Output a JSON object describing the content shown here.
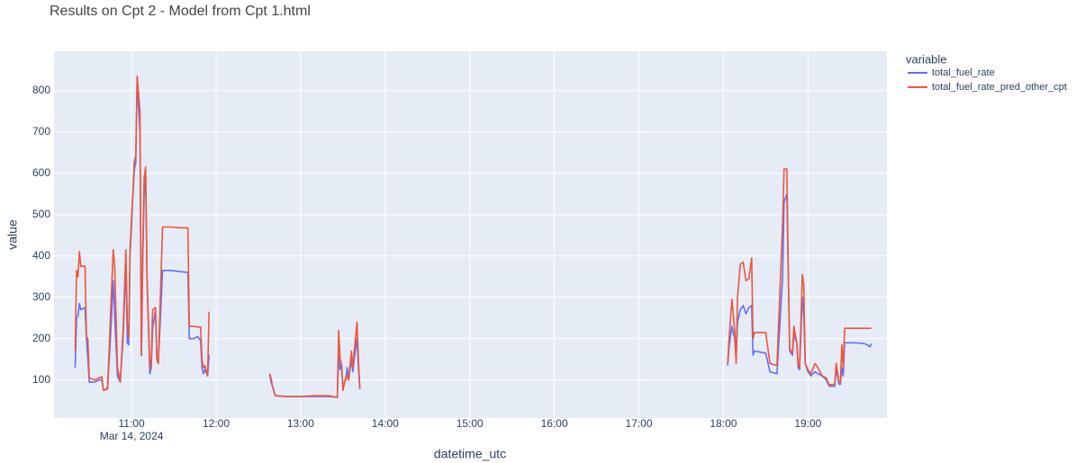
{
  "chart_data": {
    "type": "line",
    "title": "Results on Cpt 2 - Model from Cpt 1.html",
    "x_label": "datetime_utc",
    "y_label": "value",
    "legend_title": "variable",
    "legend_position": "right",
    "grid": true,
    "xlim": [
      "2024-03-14 10:05",
      "2024-03-14 19:56"
    ],
    "xticks": [
      {
        "value": "2024-03-14 11:00",
        "label": "11:00"
      },
      {
        "value": "2024-03-14 12:00",
        "label": "12:00"
      },
      {
        "value": "2024-03-14 13:00",
        "label": "13:00"
      },
      {
        "value": "2024-03-14 14:00",
        "label": "14:00"
      },
      {
        "value": "2024-03-14 15:00",
        "label": "15:00"
      },
      {
        "value": "2024-03-14 16:00",
        "label": "16:00"
      },
      {
        "value": "2024-03-14 17:00",
        "label": "17:00"
      },
      {
        "value": "2024-03-14 18:00",
        "label": "18:00"
      },
      {
        "value": "2024-03-14 19:00",
        "label": "19:00"
      }
    ],
    "xtick_date_label": "Mar 14, 2024",
    "ylim": [
      8,
      895
    ],
    "yticks": [
      100,
      200,
      300,
      400,
      500,
      600,
      700,
      800
    ],
    "x": [
      "2024-03-14 10:20",
      "2024-03-14 10:21",
      "2024-03-14 10:22",
      "2024-03-14 10:23",
      "2024-03-14 10:24",
      "2024-03-14 10:27",
      "2024-03-14 10:28",
      "2024-03-14 10:29",
      "2024-03-14 10:30",
      "2024-03-14 10:34",
      "2024-03-14 10:37",
      "2024-03-14 10:39",
      "2024-03-14 10:40",
      "2024-03-14 10:43",
      "2024-03-14 10:45",
      "2024-03-14 10:47",
      "2024-03-14 10:48",
      "2024-03-14 10:50",
      "2024-03-14 10:52",
      "2024-03-14 10:54",
      "2024-03-14 10:56",
      "2024-03-14 10:57",
      "2024-03-14 10:58",
      "2024-03-14 10:59",
      "2024-03-14 11:01",
      "2024-03-14 11:02",
      "2024-03-14 11:03",
      "2024-03-14 11:04",
      "2024-03-14 11:06",
      "2024-03-14 11:07",
      "2024-03-14 11:08",
      "2024-03-14 11:09",
      "2024-03-14 11:10",
      "2024-03-14 11:11",
      "2024-03-14 11:13",
      "2024-03-14 11:14",
      "2024-03-14 11:15",
      "2024-03-14 11:17",
      "2024-03-14 11:18",
      "2024-03-14 11:19",
      "2024-03-14 11:22",
      "2024-03-14 11:28",
      "2024-03-14 11:35",
      "2024-03-14 11:40",
      "2024-03-14 11:41",
      "2024-03-14 11:44",
      "2024-03-14 11:47",
      "2024-03-14 11:49",
      "2024-03-14 11:50",
      "2024-03-14 11:51",
      "2024-03-14 11:52",
      "2024-03-14 11:54",
      "2024-03-14 11:55",
      "2024-03-14 12:00",
      "2024-03-14 12:38",
      "2024-03-14 12:39",
      "2024-03-14 12:40",
      "2024-03-14 12:42",
      "2024-03-14 12:50",
      "2024-03-14 13:00",
      "2024-03-14 13:10",
      "2024-03-14 13:20",
      "2024-03-14 13:26",
      "2024-03-14 13:27",
      "2024-03-14 13:28",
      "2024-03-14 13:29",
      "2024-03-14 13:30",
      "2024-03-14 13:32",
      "2024-03-14 13:33",
      "2024-03-14 13:34",
      "2024-03-14 13:36",
      "2024-03-14 13:37",
      "2024-03-14 13:38",
      "2024-03-14 13:40",
      "2024-03-14 13:41",
      "2024-03-14 13:42",
      "2024-03-14 15:00",
      "2024-03-14 18:03",
      "2024-03-14 18:04",
      "2024-03-14 18:06",
      "2024-03-14 18:08",
      "2024-03-14 18:09",
      "2024-03-14 18:10",
      "2024-03-14 18:12",
      "2024-03-14 18:14",
      "2024-03-14 18:16",
      "2024-03-14 18:18",
      "2024-03-14 18:20",
      "2024-03-14 18:21",
      "2024-03-14 18:22",
      "2024-03-14 18:30",
      "2024-03-14 18:33",
      "2024-03-14 18:38",
      "2024-03-14 18:42",
      "2024-03-14 18:43",
      "2024-03-14 18:45",
      "2024-03-14 18:46",
      "2024-03-14 18:47",
      "2024-03-14 18:49",
      "2024-03-14 18:50",
      "2024-03-14 18:52",
      "2024-03-14 18:53",
      "2024-03-14 18:54",
      "2024-03-14 18:56",
      "2024-03-14 18:57",
      "2024-03-14 18:58",
      "2024-03-14 19:00",
      "2024-03-14 19:02",
      "2024-03-14 19:05",
      "2024-03-14 19:07",
      "2024-03-14 19:10",
      "2024-03-14 19:13",
      "2024-03-14 19:15",
      "2024-03-14 19:19",
      "2024-03-14 19:20",
      "2024-03-14 19:22",
      "2024-03-14 19:23",
      "2024-03-14 19:24",
      "2024-03-14 19:25",
      "2024-03-14 19:26",
      "2024-03-14 19:34",
      "2024-03-14 19:40",
      "2024-03-14 19:42",
      "2024-03-14 19:44",
      "2024-03-14 19:45"
    ],
    "series": [
      {
        "name": "total_fuel_rate",
        "color": "#636efa",
        "values": [
          130,
          250,
          255,
          285,
          270,
          275,
          200,
          150,
          95,
          95,
          100,
          100,
          75,
          80,
          200,
          340,
          260,
          110,
          95,
          200,
          380,
          190,
          185,
          400,
          550,
          610,
          625,
          820,
          700,
          160,
          400,
          560,
          600,
          340,
          115,
          130,
          225,
          270,
          150,
          140,
          365,
          365,
          362,
          360,
          200,
          200,
          205,
          195,
          130,
          115,
          125,
          110,
          160,
          null,
          115,
          95,
          85,
          62,
          60,
          60,
          60,
          60,
          58,
          160,
          125,
          140,
          85,
          100,
          130,
          100,
          150,
          120,
          150,
          200,
          130,
          78,
          null,
          135,
          180,
          230,
          200,
          150,
          240,
          270,
          280,
          260,
          275,
          280,
          160,
          170,
          165,
          120,
          115,
          350,
          530,
          550,
          360,
          170,
          160,
          210,
          190,
          130,
          125,
          300,
          260,
          140,
          120,
          110,
          120,
          115,
          110,
          100,
          85,
          85,
          130,
          90,
          90,
          130,
          110,
          190,
          190,
          188,
          185,
          180,
          188
        ]
      },
      {
        "name": "total_fuel_rate_pred_other_cpt",
        "color": "#ef553b",
        "values": [
          170,
          365,
          350,
          410,
          375,
          375,
          205,
          200,
          105,
          100,
          105,
          108,
          75,
          78,
          250,
          415,
          380,
          130,
          95,
          220,
          415,
          240,
          200,
          420,
          560,
          630,
          640,
          835,
          750,
          160,
          420,
          590,
          615,
          350,
          125,
          150,
          270,
          275,
          150,
          140,
          470,
          470,
          468,
          468,
          230,
          230,
          228,
          228,
          150,
          130,
          135,
          110,
          265,
          null,
          115,
          105,
          85,
          62,
          60,
          60,
          62,
          62,
          58,
          220,
          150,
          140,
          75,
          105,
          110,
          100,
          170,
          130,
          170,
          240,
          150,
          80,
          null,
          140,
          200,
          295,
          220,
          140,
          300,
          380,
          385,
          340,
          345,
          395,
          200,
          215,
          215,
          140,
          135,
          480,
          610,
          610,
          370,
          175,
          165,
          230,
          190,
          140,
          130,
          355,
          330,
          140,
          125,
          115,
          140,
          130,
          110,
          105,
          88,
          90,
          140,
          95,
          95,
          185,
          130,
          225,
          225,
          225,
          225,
          225,
          225
        ]
      }
    ]
  }
}
